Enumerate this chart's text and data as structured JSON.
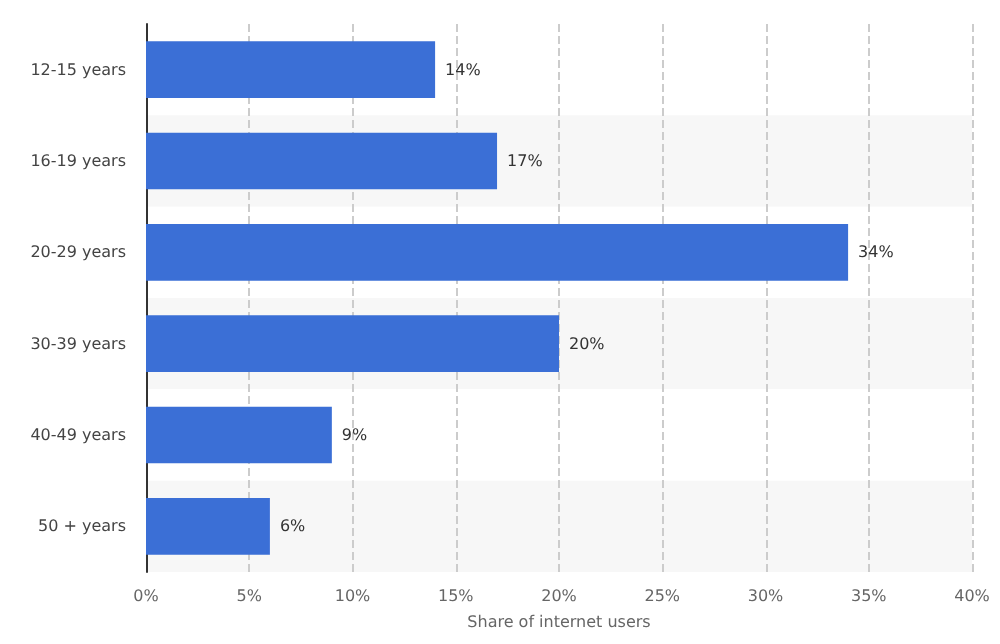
{
  "chart_data": {
    "type": "bar",
    "orientation": "horizontal",
    "categories": [
      "12-15 years",
      "16-19 years",
      "20-29 years",
      "30-39 years",
      "40-49 years",
      "50 + years"
    ],
    "values": [
      14,
      17,
      34,
      20,
      9,
      6
    ],
    "value_labels": [
      "14%",
      "17%",
      "34%",
      "20%",
      "9%",
      "6%"
    ],
    "color": "#3b6fd6",
    "xlabel": "Share of internet users",
    "xlim": [
      0,
      40
    ],
    "xticks": [
      {
        "value": 0,
        "label": "0%"
      },
      {
        "value": 5,
        "label": "5%"
      },
      {
        "value": 10,
        "label": "10%"
      },
      {
        "value": 15,
        "label": "15%"
      },
      {
        "value": 20,
        "label": "20%"
      },
      {
        "value": 25,
        "label": "25%"
      },
      {
        "value": 30,
        "label": "30%"
      },
      {
        "value": 35,
        "label": "35%"
      },
      {
        "value": 40,
        "label": "40%"
      }
    ],
    "grid": "x"
  }
}
